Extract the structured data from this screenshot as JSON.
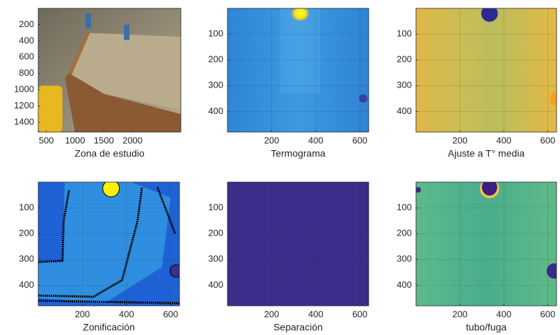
{
  "chart_data": [
    {
      "type": "image",
      "xlabel": "Zona de estudio",
      "xlim": [
        360,
        2840
      ],
      "ylim": [
        0,
        1520
      ],
      "xticks": [
        500,
        1000,
        1500,
        2000
      ],
      "yticks": [
        200,
        400,
        600,
        800,
        1000,
        1200,
        1400
      ],
      "grid": false
    },
    {
      "type": "image",
      "xlabel": "Termograma",
      "xlim": [
        0,
        640
      ],
      "ylim": [
        0,
        480
      ],
      "xticks": [
        200,
        400,
        600
      ],
      "yticks": [
        100,
        200,
        300,
        400
      ],
      "grid": true
    },
    {
      "type": "image",
      "xlabel": "Ajuste a T° media",
      "xlim": [
        0,
        640
      ],
      "ylim": [
        0,
        480
      ],
      "xticks": [
        200,
        400,
        600
      ],
      "yticks": [
        100,
        200,
        300,
        400
      ],
      "grid": true
    },
    {
      "type": "image",
      "xlabel": "Zonificación",
      "xlim": [
        0,
        640
      ],
      "ylim": [
        0,
        480
      ],
      "xticks": [
        200,
        400,
        600
      ],
      "yticks": [
        100,
        200,
        300,
        400
      ],
      "grid": true
    },
    {
      "type": "image",
      "xlabel": "Separación",
      "xlim": [
        0,
        640
      ],
      "ylim": [
        0,
        480
      ],
      "xticks": [
        200,
        400,
        600
      ],
      "yticks": [
        100,
        200,
        300,
        400
      ],
      "grid": true
    },
    {
      "type": "image",
      "xlabel": "tubo/fuga",
      "xlim": [
        0,
        640
      ],
      "ylim": [
        0,
        480
      ],
      "xticks": [
        200,
        400,
        600
      ],
      "yticks": [
        100,
        200,
        300,
        400
      ],
      "grid": true
    }
  ]
}
